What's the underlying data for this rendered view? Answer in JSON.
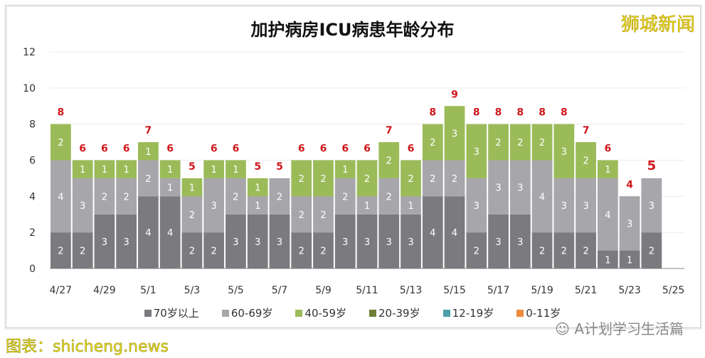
{
  "brand": "狮城新闻",
  "credit": "shicheng.news",
  "credit_prefix": "图表：",
  "wechat": "A计划学习生活篇",
  "chart_data": {
    "type": "bar",
    "stacked": true,
    "title": "加护病房ICU病患年龄分布",
    "ylim": [
      0,
      12
    ],
    "yticks": [
      0,
      2,
      4,
      6,
      8,
      10,
      12
    ],
    "grid": true,
    "legend": "bottom",
    "categories": [
      "4/27",
      "4/28",
      "4/29",
      "4/30",
      "5/1",
      "5/2",
      "5/3",
      "5/4",
      "5/5",
      "5/6",
      "5/7",
      "5/8",
      "5/9",
      "5/10",
      "5/11",
      "5/12",
      "5/13",
      "5/14",
      "5/15",
      "5/16",
      "5/17",
      "5/18",
      "5/19",
      "5/20",
      "5/21",
      "5/22",
      "5/23",
      "5/24",
      "5/25"
    ],
    "xtick_labels": [
      "4/27",
      "4/29",
      "5/1",
      "5/3",
      "5/5",
      "5/7",
      "5/9",
      "5/11",
      "5/13",
      "5/15",
      "5/17",
      "5/19",
      "5/21",
      "5/23",
      "5/25"
    ],
    "series": [
      {
        "name": "70岁以上",
        "color": "#7b7a7e",
        "values": [
          2,
          2,
          3,
          3,
          4,
          4,
          2,
          2,
          3,
          3,
          3,
          2,
          2,
          3,
          3,
          3,
          3,
          4,
          4,
          2,
          3,
          3,
          2,
          2,
          2,
          1,
          1,
          2,
          null
        ]
      },
      {
        "name": "60-69岁",
        "color": "#a7a6aa",
        "values": [
          4,
          3,
          2,
          2,
          2,
          1,
          2,
          3,
          2,
          1,
          2,
          2,
          2,
          2,
          1,
          2,
          1,
          2,
          2,
          3,
          3,
          3,
          4,
          3,
          3,
          4,
          3,
          3,
          null
        ]
      },
      {
        "name": "40-59岁",
        "color": "#9bbb59",
        "values": [
          2,
          1,
          1,
          1,
          1,
          1,
          1,
          1,
          1,
          1,
          0,
          2,
          2,
          1,
          2,
          2,
          2,
          2,
          3,
          3,
          2,
          2,
          2,
          3,
          2,
          1,
          0,
          0,
          null
        ]
      },
      {
        "name": "20-39岁",
        "color": "#6f7f35",
        "values": [
          0,
          0,
          0,
          0,
          0,
          0,
          0,
          0,
          0,
          0,
          0,
          0,
          0,
          0,
          0,
          0,
          0,
          0,
          0,
          0,
          0,
          0,
          0,
          0,
          0,
          0,
          0,
          0,
          null
        ]
      },
      {
        "name": "12-19岁",
        "color": "#4aa0a8",
        "values": [
          0,
          0,
          0,
          0,
          0,
          0,
          0,
          0,
          0,
          0,
          0,
          0,
          0,
          0,
          0,
          0,
          0,
          0,
          0,
          0,
          0,
          0,
          0,
          0,
          0,
          0,
          0,
          0,
          null
        ]
      },
      {
        "name": "0-11岁",
        "color": "#f08a3c",
        "values": [
          0,
          0,
          0,
          0,
          0,
          0,
          0,
          0,
          0,
          0,
          0,
          0,
          0,
          0,
          0,
          0,
          0,
          0,
          0,
          0,
          0,
          0,
          0,
          0,
          0,
          0,
          0,
          0,
          null
        ]
      }
    ],
    "totals": [
      8,
      6,
      6,
      6,
      7,
      6,
      5,
      6,
      6,
      5,
      5,
      6,
      6,
      6,
      6,
      7,
      6,
      8,
      9,
      8,
      8,
      8,
      8,
      8,
      7,
      6,
      4,
      5,
      null
    ],
    "total_label_color": "#d0161b"
  }
}
